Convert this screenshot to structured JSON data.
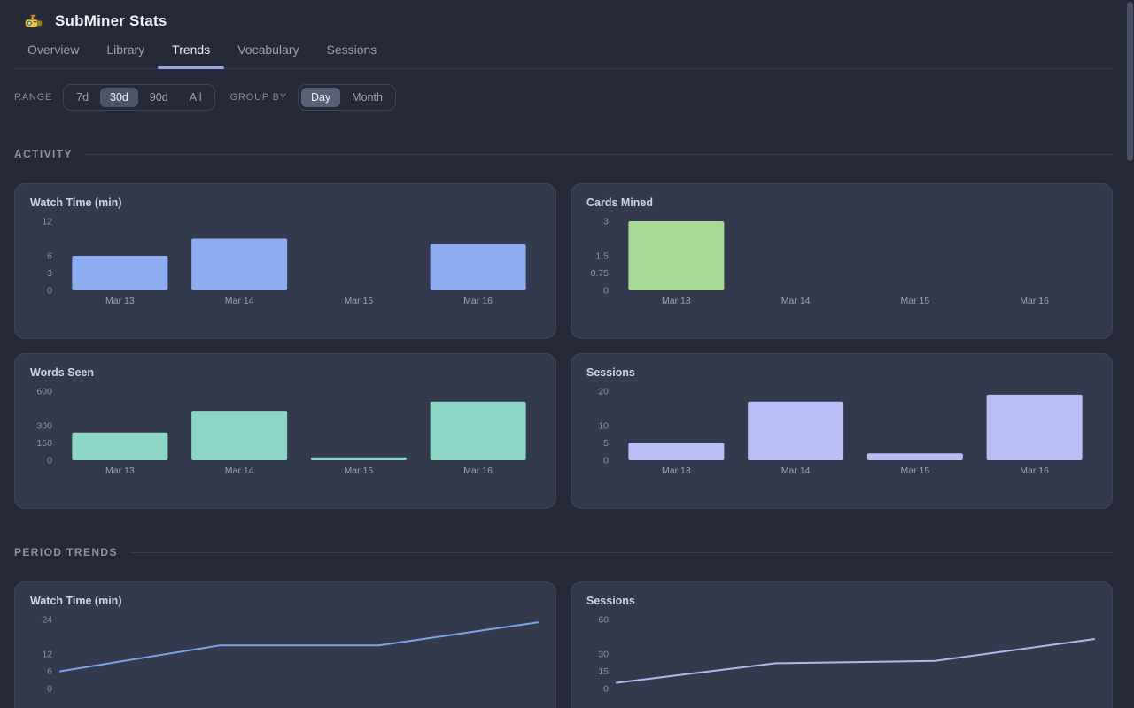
{
  "app": {
    "title": "SubMiner Stats"
  },
  "tabs": [
    {
      "label": "Overview",
      "active": false
    },
    {
      "label": "Library",
      "active": false
    },
    {
      "label": "Trends",
      "active": true
    },
    {
      "label": "Vocabulary",
      "active": false
    },
    {
      "label": "Sessions",
      "active": false
    }
  ],
  "controls": {
    "range": {
      "label": "RANGE",
      "options": [
        "7d",
        "30d",
        "90d",
        "All"
      ],
      "selected": "30d"
    },
    "group_by": {
      "label": "GROUP BY",
      "options": [
        "Day",
        "Month"
      ],
      "selected": "Day"
    }
  },
  "sections": {
    "activity": {
      "title": "ACTIVITY"
    },
    "trends": {
      "title": "PERIOD TRENDS"
    }
  },
  "chart_data": [
    {
      "type": "bar",
      "section": "activity",
      "title": "Watch Time (min)",
      "categories": [
        "Mar 13",
        "Mar 14",
        "Mar 15",
        "Mar 16"
      ],
      "values": [
        6,
        9,
        0,
        8
      ],
      "yticks": [
        "12",
        "6",
        "3",
        "0"
      ],
      "ylim": [
        0,
        12
      ],
      "color": "#8caef0",
      "grid": false,
      "show_xlabels": true
    },
    {
      "type": "bar",
      "section": "activity",
      "title": "Cards Mined",
      "categories": [
        "Mar 13",
        "Mar 14",
        "Mar 15",
        "Mar 16"
      ],
      "values": [
        3,
        0,
        0,
        0
      ],
      "yticks": [
        "3",
        "1.5",
        "0.75",
        "0"
      ],
      "ylim": [
        0,
        3
      ],
      "color": "#a6d998",
      "grid": false,
      "show_xlabels": true
    },
    {
      "type": "bar",
      "section": "activity",
      "title": "Words Seen",
      "categories": [
        "Mar 13",
        "Mar 14",
        "Mar 15",
        "Mar 16"
      ],
      "values": [
        240,
        430,
        25,
        510
      ],
      "yticks": [
        "600",
        "300",
        "150",
        "0"
      ],
      "ylim": [
        0,
        600
      ],
      "color": "#8dd5c5",
      "grid": false,
      "show_xlabels": true
    },
    {
      "type": "bar",
      "section": "activity",
      "title": "Sessions",
      "categories": [
        "Mar 13",
        "Mar 14",
        "Mar 15",
        "Mar 16"
      ],
      "values": [
        5,
        17,
        2,
        19
      ],
      "yticks": [
        "20",
        "10",
        "5",
        "0"
      ],
      "ylim": [
        0,
        20
      ],
      "color": "#b9bef4",
      "grid": false,
      "show_xlabels": true
    },
    {
      "type": "line",
      "section": "trends",
      "title": "Watch Time (min)",
      "categories": [
        "Mar 13",
        "Mar 14",
        "Mar 15",
        "Mar 16"
      ],
      "values": [
        6,
        15,
        15,
        23
      ],
      "yticks": [
        "24",
        "12",
        "6",
        "0"
      ],
      "ylim": [
        0,
        24
      ],
      "color": "#7ba3e8",
      "grid": false,
      "show_xlabels": false
    },
    {
      "type": "line",
      "section": "trends",
      "title": "Sessions",
      "categories": [
        "Mar 13",
        "Mar 14",
        "Mar 15",
        "Mar 16"
      ],
      "values": [
        5,
        22,
        24,
        43
      ],
      "yticks": [
        "60",
        "30",
        "15",
        "0"
      ],
      "ylim": [
        0,
        60
      ],
      "color": "#b2b7ee",
      "grid": false,
      "show_xlabels": false
    }
  ],
  "colors": {
    "page_bg": "#252938",
    "card_bg": "#343a4e",
    "accent_underline": "#9aa3e8",
    "bar_blue": "#8caef0",
    "bar_green": "#a6d998",
    "bar_teal": "#8dd5c5",
    "bar_lavender": "#b9bef4"
  }
}
